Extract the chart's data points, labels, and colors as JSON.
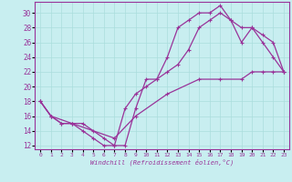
{
  "xlabel": "Windchill (Refroidissement éolien,°C)",
  "bg_color": "#c8eef0",
  "line_color": "#993399",
  "grid_color": "#aadddd",
  "xlim": [
    -0.5,
    23.5
  ],
  "ylim": [
    11.5,
    31.5
  ],
  "xticks": [
    0,
    1,
    2,
    3,
    4,
    5,
    6,
    7,
    8,
    9,
    10,
    11,
    12,
    13,
    14,
    15,
    16,
    17,
    18,
    19,
    20,
    21,
    22,
    23
  ],
  "yticks": [
    12,
    14,
    16,
    18,
    20,
    22,
    24,
    26,
    28,
    30
  ],
  "line1_x": [
    0,
    1,
    2,
    3,
    4,
    5,
    6,
    7,
    8,
    9,
    10,
    11,
    12,
    13,
    14,
    15,
    16,
    17,
    18,
    19,
    20,
    21,
    22,
    23
  ],
  "line1_y": [
    18,
    16,
    15,
    15,
    15,
    14,
    13,
    12,
    12,
    17,
    21,
    21,
    24,
    28,
    29,
    30,
    30,
    31,
    29,
    26,
    28,
    26,
    24,
    22
  ],
  "line2_x": [
    0,
    1,
    2,
    3,
    4,
    5,
    6,
    7,
    8,
    9,
    10,
    11,
    12,
    13,
    14,
    15,
    16,
    17,
    18,
    19,
    20,
    21,
    22,
    23
  ],
  "line2_y": [
    18,
    16,
    15,
    15,
    14,
    13,
    12,
    12,
    17,
    19,
    20,
    21,
    22,
    23,
    25,
    28,
    29,
    30,
    29,
    28,
    28,
    27,
    26,
    22
  ],
  "line3_x": [
    0,
    1,
    3,
    7,
    9,
    12,
    15,
    17,
    19,
    20,
    21,
    22,
    23
  ],
  "line3_y": [
    18,
    16,
    15,
    13,
    16,
    19,
    21,
    21,
    21,
    22,
    22,
    22,
    22
  ]
}
